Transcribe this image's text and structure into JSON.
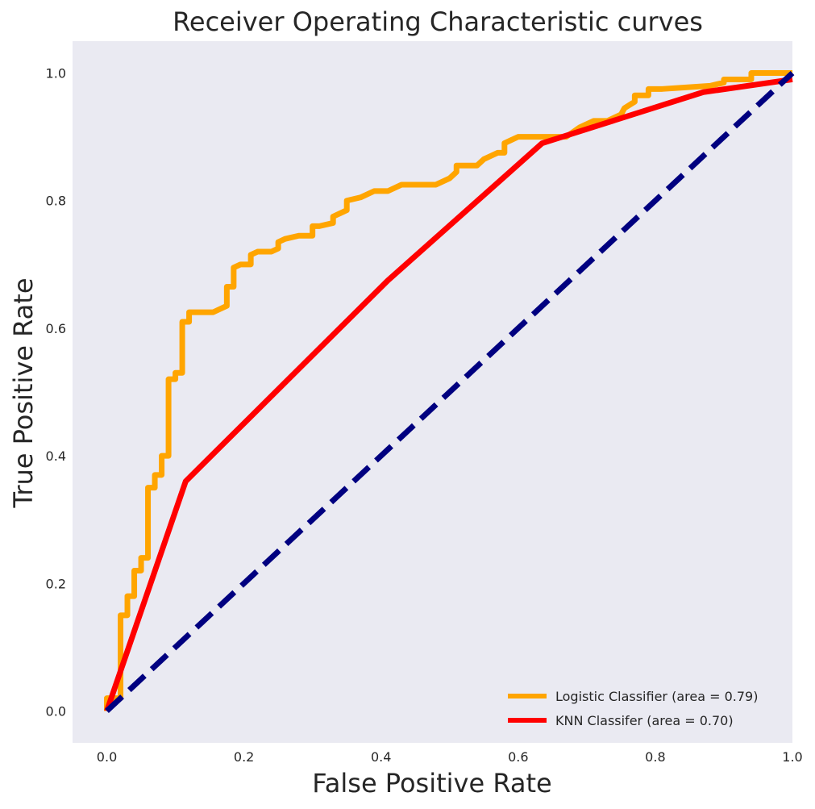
{
  "chart_data": {
    "type": "line",
    "title": "Receiver Operating Characteristic curves",
    "xlabel": "False Positive Rate",
    "ylabel": "True Positive Rate",
    "xlim": [
      -0.05,
      1.0
    ],
    "ylim": [
      -0.05,
      1.05
    ],
    "xticks": [
      0.0,
      0.2,
      0.4,
      0.6,
      0.8,
      1.0
    ],
    "xtick_labels": [
      "0.0",
      "0.2",
      "0.4",
      "0.6",
      "0.8",
      "1.0"
    ],
    "yticks": [
      0.0,
      0.2,
      0.4,
      0.6,
      0.8,
      1.0
    ],
    "ytick_labels": [
      "0.0",
      "0.2",
      "0.4",
      "0.6",
      "0.8",
      "1.0"
    ],
    "grid": false,
    "legend_position": "lower-right",
    "background": "#eaeaf2",
    "series": [
      {
        "name": "Logistic Classifier (area = 0.79)",
        "color": "#ffa500",
        "style": "solid",
        "x": [
          0.0,
          0.0,
          0.02,
          0.02,
          0.03,
          0.03,
          0.04,
          0.04,
          0.05,
          0.05,
          0.06,
          0.06,
          0.07,
          0.07,
          0.08,
          0.08,
          0.09,
          0.09,
          0.1,
          0.1,
          0.11,
          0.11,
          0.12,
          0.12,
          0.155,
          0.175,
          0.175,
          0.185,
          0.185,
          0.195,
          0.21,
          0.21,
          0.22,
          0.24,
          0.25,
          0.25,
          0.26,
          0.28,
          0.3,
          0.3,
          0.31,
          0.33,
          0.33,
          0.34,
          0.35,
          0.35,
          0.37,
          0.39,
          0.41,
          0.43,
          0.45,
          0.48,
          0.5,
          0.51,
          0.51,
          0.54,
          0.55,
          0.56,
          0.57,
          0.58,
          0.58,
          0.59,
          0.6,
          0.62,
          0.67,
          0.69,
          0.71,
          0.73,
          0.75,
          0.755,
          0.77,
          0.77,
          0.79,
          0.79,
          0.81,
          0.88,
          0.9,
          0.9,
          0.94,
          0.94,
          1.0
        ],
        "y": [
          0.0,
          0.02,
          0.02,
          0.15,
          0.15,
          0.18,
          0.18,
          0.22,
          0.22,
          0.24,
          0.24,
          0.35,
          0.35,
          0.37,
          0.37,
          0.4,
          0.4,
          0.52,
          0.52,
          0.53,
          0.53,
          0.61,
          0.61,
          0.625,
          0.625,
          0.635,
          0.665,
          0.665,
          0.695,
          0.7,
          0.7,
          0.715,
          0.72,
          0.72,
          0.725,
          0.735,
          0.74,
          0.745,
          0.745,
          0.76,
          0.76,
          0.765,
          0.775,
          0.78,
          0.785,
          0.8,
          0.805,
          0.815,
          0.815,
          0.825,
          0.825,
          0.825,
          0.835,
          0.845,
          0.855,
          0.855,
          0.865,
          0.87,
          0.875,
          0.875,
          0.89,
          0.895,
          0.9,
          0.9,
          0.9,
          0.915,
          0.925,
          0.925,
          0.935,
          0.945,
          0.955,
          0.965,
          0.965,
          0.975,
          0.975,
          0.98,
          0.985,
          0.99,
          0.99,
          1.0,
          1.0
        ]
      },
      {
        "name": "KNN Classifer (area = 0.70)",
        "color": "#ff0000",
        "style": "solid",
        "x": [
          0.0,
          0.115,
          0.41,
          0.635,
          0.87,
          1.0
        ],
        "y": [
          0.0,
          0.36,
          0.675,
          0.89,
          0.97,
          0.99
        ]
      },
      {
        "color": "#000080",
        "style": "dashed",
        "x": [
          0.0,
          1.0
        ],
        "y": [
          0.0,
          1.0
        ]
      }
    ]
  }
}
